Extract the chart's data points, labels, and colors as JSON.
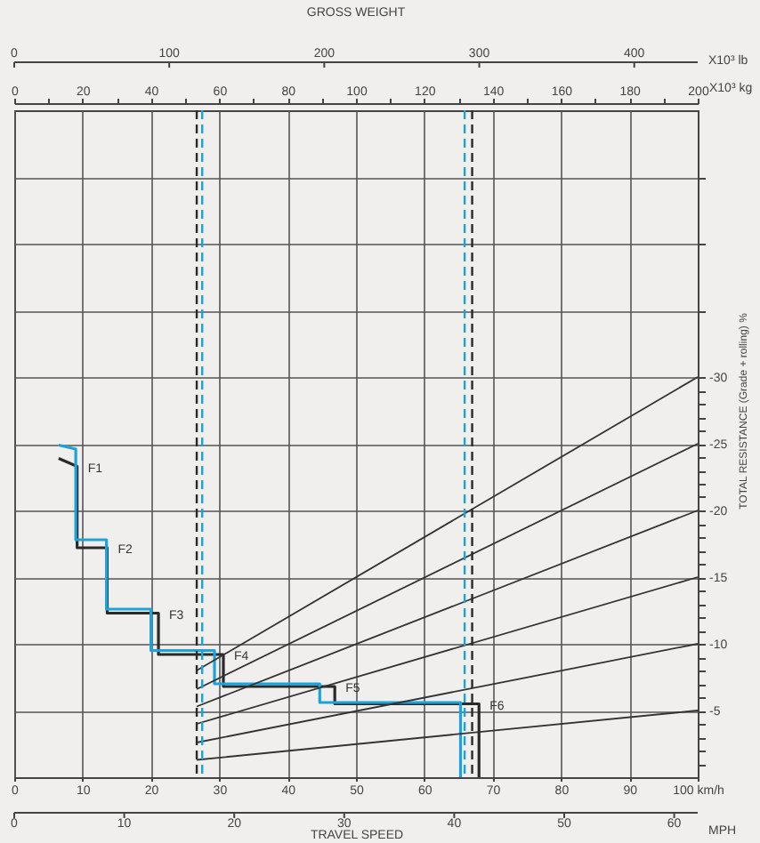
{
  "chart_data": {
    "type": "line",
    "title": "GROSS WEIGHT",
    "xlabel": "TRAVEL SPEED",
    "ylabel": "TOTAL RESISTANCE (Grade + rolling) %",
    "xlim": [
      0,
      100
    ],
    "xticks": [
      0,
      10,
      20,
      30,
      40,
      50,
      60,
      70,
      80,
      90,
      {
        "value": 100,
        "label": "100 km/h"
      }
    ],
    "ylim": [
      0,
      -50
    ],
    "yticks": [
      {
        "value": -1,
        "label": null
      },
      {
        "value": -2,
        "label": null
      },
      {
        "value": -3,
        "label": null
      },
      {
        "value": -4,
        "label": null
      },
      -5,
      {
        "value": -6,
        "label": null
      },
      {
        "value": -7,
        "label": null
      },
      {
        "value": -8,
        "label": null
      },
      {
        "value": -9,
        "label": null
      },
      -10,
      {
        "value": -11,
        "label": null
      },
      {
        "value": -12,
        "label": null
      },
      {
        "value": -13,
        "label": null
      },
      {
        "value": -14,
        "label": null
      },
      -15,
      {
        "value": -16,
        "label": null
      },
      {
        "value": -17,
        "label": null
      },
      {
        "value": -18,
        "label": null
      },
      {
        "value": -19,
        "label": null
      },
      -20,
      {
        "value": -21,
        "label": null
      },
      {
        "value": -22,
        "label": null
      },
      {
        "value": -23,
        "label": null
      },
      {
        "value": -24,
        "label": null
      },
      -25,
      {
        "value": -26,
        "label": null
      },
      {
        "value": -27,
        "label": null
      },
      {
        "value": -28,
        "label": null
      },
      {
        "value": -29,
        "label": null
      },
      -30,
      {
        "value": -35,
        "label": null
      },
      {
        "value": -40,
        "label": null
      },
      {
        "value": -45,
        "label": null
      }
    ],
    "x2lim": [
      0,
      200
    ],
    "x2label": "X10³ kg",
    "x2ticks": [
      0,
      {
        "value": 10,
        "label": null
      },
      20,
      {
        "value": 30,
        "label": null
      },
      40,
      {
        "value": 50,
        "label": null
      },
      60,
      {
        "value": 70,
        "label": null
      },
      80,
      {
        "value": 90,
        "label": null
      },
      100,
      {
        "value": 110,
        "label": null
      },
      120,
      {
        "value": 130,
        "label": null
      },
      140,
      {
        "value": 150,
        "label": null
      },
      160,
      {
        "value": 170,
        "label": null
      },
      180,
      {
        "value": 190,
        "label": null
      },
      200
    ],
    "grid": true,
    "series": [
      {
        "type": "line",
        "color": "#2a2a2a",
        "x": [
          6.5,
          9.2,
          9.2,
          13.6,
          13.6,
          21.1,
          21.1,
          30.6,
          30.6,
          46.9,
          46.9,
          68.0,
          68.0
        ],
        "values": [
          -23.9,
          -23.3,
          -17.2,
          -17.2,
          -12.3,
          -12.3,
          -9.2,
          -9.2,
          -6.8,
          -6.8,
          -5.5,
          -5.5,
          0
        ]
      },
      {
        "type": "line",
        "color": "#1ba3dc",
        "x": [
          6.5,
          9.0,
          9.0,
          13.5,
          13.5,
          20.0,
          20.0,
          29.3,
          29.3,
          44.7,
          44.7,
          65.3,
          65.3
        ],
        "values": [
          -24.9,
          -24.6,
          -17.8,
          -17.8,
          -12.6,
          -12.6,
          -9.5,
          -9.5,
          -7.0,
          -7.0,
          -5.6,
          -5.6,
          0
        ]
      },
      {
        "type": "line",
        "color": "#333333",
        "x": [
          26.7,
          100
        ],
        "values": [
          -1.3,
          -5
        ]
      },
      {
        "type": "line",
        "color": "#333333",
        "x": [
          26.7,
          100
        ],
        "values": [
          -2.6,
          -10
        ]
      },
      {
        "type": "line",
        "color": "#333333",
        "x": [
          26.7,
          100
        ],
        "values": [
          -4.0,
          -15
        ]
      },
      {
        "type": "line",
        "color": "#333333",
        "x": [
          26.7,
          100
        ],
        "values": [
          -5.3,
          -20
        ]
      },
      {
        "type": "line",
        "color": "#333333",
        "x": [
          26.7,
          100
        ],
        "values": [
          -6.6,
          -25
        ]
      },
      {
        "type": "line",
        "color": "#333333",
        "x": [
          26.7,
          100
        ],
        "values": [
          -8.0,
          -30
        ]
      }
    ],
    "ref_lines": [
      {
        "axis": "x",
        "value": 26.7,
        "color": "#2a2a2a",
        "line_style": "dashed"
      },
      {
        "axis": "x",
        "value": 27.5,
        "color": "#1ba3dc",
        "line_style": "dashed"
      },
      {
        "axis": "x",
        "value": 65.9,
        "color": "#1ba3dc",
        "line_style": "dashed"
      },
      {
        "axis": "x",
        "value": 67.0,
        "color": "#2a2a2a",
        "line_style": "dashed"
      }
    ],
    "annotations": [
      {
        "text": "F1",
        "x": 9.2,
        "y": -23.3
      },
      {
        "text": "F2",
        "x": 13.6,
        "y": -17.2
      },
      {
        "text": "F3",
        "x": 21.1,
        "y": -12.3
      },
      {
        "text": "F4",
        "x": 30.6,
        "y": -9.2
      },
      {
        "text": "F5",
        "x": 46.9,
        "y": -6.8
      },
      {
        "text": "F6",
        "x": 68.0,
        "y": -5.5
      },
      "0",
      "100",
      "200",
      "300",
      "400",
      "X10³ lb",
      "0",
      "10",
      "20",
      "30",
      "40",
      "50",
      "60",
      "MPH"
    ]
  }
}
